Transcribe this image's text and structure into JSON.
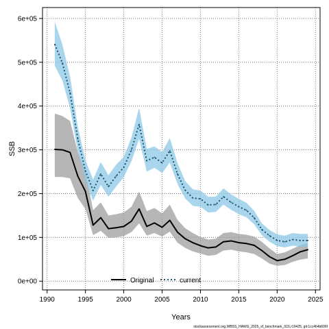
{
  "chart_data": {
    "type": "line",
    "title": "",
    "xlabel": "Years",
    "ylabel": "SSB",
    "xlim": [
      1989.4,
      2025.6
    ],
    "ylim": [
      -20000,
      625000
    ],
    "x_ticks": [
      1990,
      1995,
      2000,
      2005,
      2010,
      2015,
      2020,
      2025
    ],
    "x_tick_labels": [
      "1990",
      "1995",
      "2000",
      "2005",
      "2010",
      "2015",
      "2020",
      "2025"
    ],
    "y_ticks": [
      0,
      100000,
      200000,
      300000,
      400000,
      500000,
      600000
    ],
    "y_tick_labels": [
      "0e+00",
      "1e+05",
      "2e+05",
      "3e+05",
      "4e+05",
      "5e+05",
      "6e+05"
    ],
    "grid": true,
    "legend_position": "bottom-center",
    "x": [
      1991,
      1992,
      1993,
      1994,
      1995,
      1996,
      1997,
      1998,
      1999,
      2000,
      2001,
      2002,
      2003,
      2004,
      2005,
      2006,
      2007,
      2008,
      2009,
      2010,
      2011,
      2012,
      2013,
      2014,
      2015,
      2016,
      2017,
      2018,
      2019,
      2020,
      2021,
      2022,
      2023,
      2024
    ],
    "series": [
      {
        "name": "Original",
        "color": "#000000",
        "band_color": "#9e9e9e",
        "values": [
          301000,
          300000,
          294000,
          240000,
          205000,
          128000,
          145000,
          120000,
          122000,
          125000,
          137000,
          165000,
          125000,
          133000,
          123000,
          139000,
          112000,
          97000,
          88000,
          81000,
          76000,
          78000,
          90000,
          92000,
          88000,
          86000,
          82000,
          70000,
          56000,
          47000,
          50000,
          58000,
          67000,
          72000
        ],
        "lower": [
          238000,
          238000,
          235000,
          190000,
          165000,
          105000,
          115000,
          99000,
          100000,
          103000,
          112000,
          132000,
          104000,
          110000,
          102000,
          113000,
          88000,
          76000,
          68000,
          63000,
          58000,
          60000,
          70000,
          72000,
          68000,
          66000,
          62000,
          52000,
          40000,
          35000,
          37000,
          44000,
          49000,
          52000
        ],
        "upper": [
          383000,
          377000,
          366000,
          295000,
          252000,
          162000,
          180000,
          150000,
          153000,
          157000,
          170000,
          205000,
          160000,
          167000,
          155000,
          175000,
          140000,
          121000,
          110000,
          101000,
          95000,
          97000,
          110000,
          112000,
          108000,
          106000,
          102000,
          90000,
          75000,
          62000,
          66000,
          74000,
          82000,
          88000
        ]
      },
      {
        "name": "current",
        "color": "#1b556a",
        "band_color": "#8cc8e6",
        "values": [
          541000,
          498000,
          430000,
          325000,
          252000,
          207000,
          245000,
          216000,
          240000,
          260000,
          300000,
          358000,
          275000,
          283000,
          270000,
          298000,
          245000,
          208000,
          190000,
          188000,
          174000,
          175000,
          193000,
          180000,
          170000,
          162000,
          145000,
          118000,
          104000,
          93000,
          90000,
          95000,
          93000,
          93000
        ],
        "lower": [
          492000,
          458000,
          395000,
          297000,
          230000,
          184000,
          220000,
          193000,
          216000,
          238000,
          274000,
          325000,
          250000,
          259000,
          247000,
          271000,
          222000,
          189000,
          172000,
          170000,
          157000,
          158000,
          175000,
          163000,
          153000,
          146000,
          130000,
          105000,
          90000,
          80000,
          77000,
          81000,
          79000,
          78000
        ],
        "upper": [
          593000,
          540000,
          467000,
          353000,
          276000,
          232000,
          272000,
          242000,
          266000,
          284000,
          328000,
          396000,
          302000,
          308000,
          295000,
          327000,
          270000,
          229000,
          210000,
          207000,
          193000,
          193000,
          212000,
          198000,
          188000,
          179000,
          161000,
          132000,
          117000,
          107000,
          104000,
          110000,
          108000,
          108000
        ]
      }
    ]
  },
  "labels": {
    "xlabel": "Years",
    "ylabel": "SSB",
    "legend_original": "Original",
    "legend_current": "current",
    "footer": "stockassessment.org,WBSS_HAWG_2025_sf_benchmark_ß15,r19425, git:1cc464b606f"
  }
}
